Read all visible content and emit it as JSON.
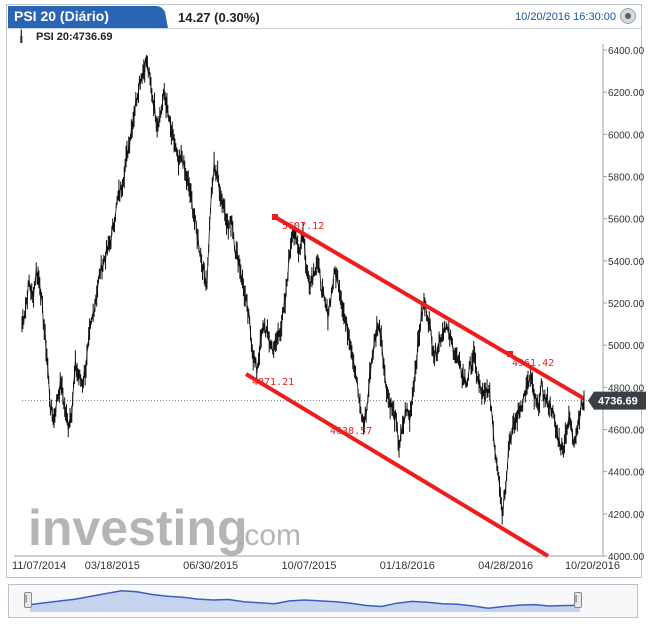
{
  "header": {
    "instrument_tab": "PSI 20 (Diário)",
    "price_change": "14.27 (0.30%)",
    "datetime": "10/20/2016 16:30:00",
    "instrument_label": "PSI 20:4736.69",
    "icon_instrument": "candle-icon",
    "icon_close": "close-icon"
  },
  "watermark": {
    "logo_bold": "investing",
    "logo_suffix": ".com"
  },
  "colors": {
    "tab_blue": "#2a64b4",
    "trendline_red": "#ee1c1c",
    "price_tag": "#3a3f46",
    "nav_fill": "#5d7fc9",
    "watermark": "#a9a9a9"
  },
  "chart_data": {
    "type": "line",
    "ylim": [
      4000,
      6400
    ],
    "y_ticks": [
      "4000.00",
      "4200.00",
      "4400.00",
      "4600.00",
      "4800.00",
      "5000.00",
      "5200.00",
      "5400.00",
      "5600.00",
      "5800.00",
      "6000.00",
      "6200.00",
      "6400.00"
    ],
    "x_ticks": [
      "11/07/2014",
      "03/18/2015",
      "06/30/2015",
      "10/07/2015",
      "01/18/2016",
      "04/28/2016",
      "10/20/2016"
    ],
    "last_price_label": "4736.69",
    "last_price": 4736.69,
    "series": [
      {
        "values": [
          5100,
          5180,
          5300,
          5220,
          5350,
          5300,
          5120,
          4950,
          4700,
          4650,
          4760,
          4820,
          4700,
          4620,
          4700,
          4900,
          4850,
          4820,
          4900,
          5050,
          5150,
          5250,
          5350,
          5400,
          5450,
          5500,
          5600,
          5700,
          5750,
          5850,
          5950,
          6050,
          6150,
          6250,
          6300,
          6350,
          6250,
          6150,
          6050,
          6100,
          6200,
          6100,
          6000,
          5950,
          5850,
          5900,
          5800,
          5750,
          5650,
          5550,
          5450,
          5350,
          5300,
          5650,
          5850,
          5800,
          5700,
          5650,
          5550,
          5600,
          5450,
          5400,
          5300,
          5200,
          5100,
          4950,
          4880,
          5000,
          5100,
          5050,
          5000,
          4980,
          5050,
          5100,
          5200,
          5400,
          5550,
          5500,
          5450,
          5550,
          5350,
          5300,
          5350,
          5400,
          5300,
          5200,
          5150,
          5250,
          5350,
          5300,
          5200,
          5100,
          5050,
          4950,
          4850,
          4700,
          4620,
          4700,
          4900,
          5000,
          5100,
          5050,
          4850,
          4750,
          4700,
          4650,
          4520,
          4600,
          4700,
          4650,
          4800,
          4950,
          5100,
          5200,
          5150,
          5050,
          4950,
          5000,
          5050,
          5100,
          5050,
          5000,
          4950,
          4900,
          4850,
          4820,
          4900,
          4950,
          4850,
          4780,
          4750,
          4800,
          4700,
          4500,
          4400,
          4200,
          4350,
          4550,
          4600,
          4650,
          4700,
          4750,
          4800,
          4850,
          4750,
          4700,
          4800,
          4750,
          4720,
          4700,
          4600,
          4550,
          4500,
          4600,
          4650,
          4550,
          4600,
          4700,
          4736.69
        ]
      }
    ],
    "annotations": [
      {
        "label": "5607.12",
        "value": 5607.12
      },
      {
        "label": "4871.21",
        "value": 4871.21
      },
      {
        "label": "4961.42",
        "value": 4961.42
      },
      {
        "label": "4638.57",
        "value": 4638.57
      }
    ],
    "navigator_values": [
      4800,
      5000,
      5200,
      5400,
      5700,
      6000,
      6300,
      6200,
      5900,
      5700,
      5600,
      5400,
      5300,
      5350,
      5100,
      5000,
      4900,
      5200,
      5300,
      5200,
      5100,
      4950,
      4700,
      4600,
      4950,
      5150,
      5050,
      4900,
      4850,
      4650,
      4400,
      4600,
      4750,
      4800,
      4650,
      4700,
      4720
    ]
  }
}
